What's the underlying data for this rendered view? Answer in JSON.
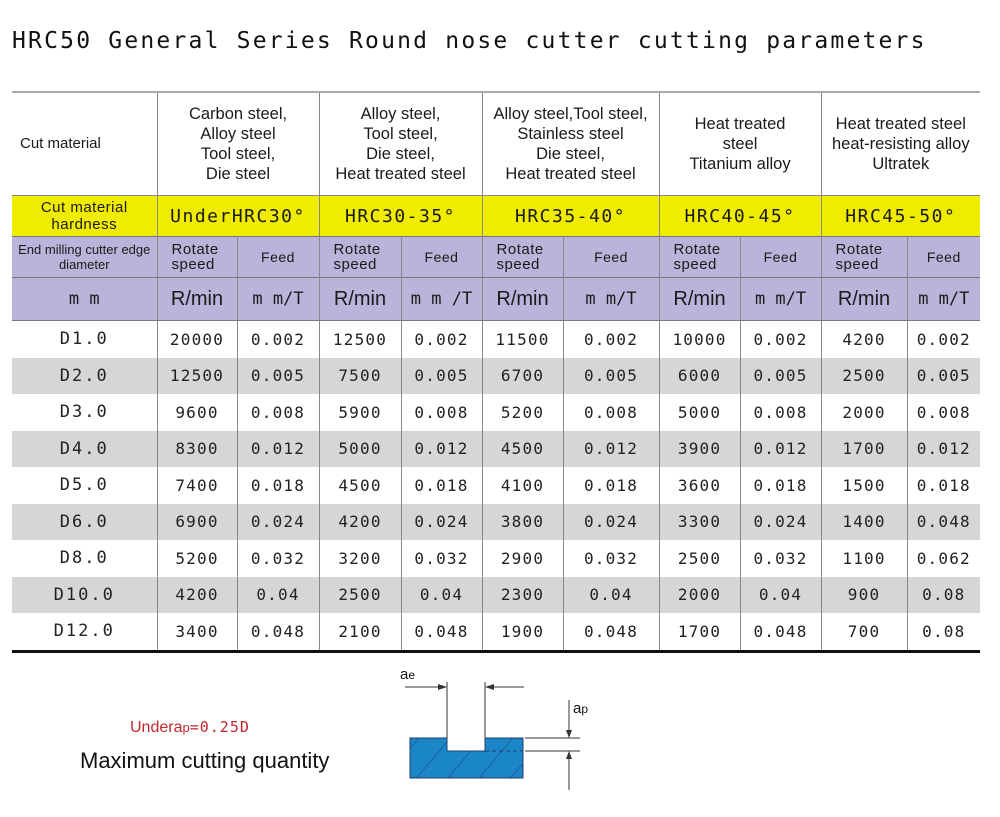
{
  "title": "HRC50 General Series Round nose cutter cutting parameters",
  "table": {
    "cut_material_label": "Cut material",
    "hardness_label": "Cut material hardness",
    "diameter_label": "End milling cutter edge diameter",
    "diameter_unit": "m m",
    "groups": [
      {
        "materials": [
          "Carbon steel,",
          "Alloy steel",
          "Tool steel,",
          "Die steel"
        ],
        "hardness": "UnderHRC30°",
        "speed_label": "Rotate speed",
        "feed_label": "Feed",
        "speed_unit": "R/min",
        "feed_unit": "m m/T"
      },
      {
        "materials": [
          "Alloy steel,",
          "Tool steel,",
          "Die steel,",
          "Heat treated steel"
        ],
        "hardness": "HRC30-35°",
        "speed_label": "Rotate speed",
        "feed_label": "Feed",
        "speed_unit": "R/min",
        "feed_unit": "m m /T"
      },
      {
        "materials": [
          "Alloy steel,Tool steel,",
          "Stainless steel",
          "Die steel,",
          "Heat treated steel"
        ],
        "hardness": "HRC35-40°",
        "speed_label": "Rotate speed",
        "feed_label": "Feed",
        "speed_unit": "R/min",
        "feed_unit": "m m/T"
      },
      {
        "materials": [
          "Heat treated",
          "steel",
          "Titanium alloy"
        ],
        "hardness": "HRC40-45°",
        "speed_label": "Rotate speed",
        "feed_label": "Feed",
        "speed_unit": "R/min",
        "feed_unit": "m m/T"
      },
      {
        "materials": [
          "Heat treated steel",
          "heat-resisting alloy",
          "Ultratek"
        ],
        "hardness": "HRC45-50°",
        "speed_label": "Rotate speed",
        "feed_label": "Feed",
        "speed_unit": "R/min",
        "feed_unit": "m m/T"
      }
    ],
    "rows": [
      {
        "diameter": "D1.0",
        "values": [
          "20000",
          "0.002",
          "12500",
          "0.002",
          "11500",
          "0.002",
          "10000",
          "0.002",
          "4200",
          "0.002"
        ]
      },
      {
        "diameter": "D2.0",
        "values": [
          "12500",
          "0.005",
          "7500",
          "0.005",
          "6700",
          "0.005",
          "6000",
          "0.005",
          "2500",
          "0.005"
        ]
      },
      {
        "diameter": "D3.0",
        "values": [
          "9600",
          "0.008",
          "5900",
          "0.008",
          "5200",
          "0.008",
          "5000",
          "0.008",
          "2000",
          "0.008"
        ]
      },
      {
        "diameter": "D4.0",
        "values": [
          "8300",
          "0.012",
          "5000",
          "0.012",
          "4500",
          "0.012",
          "3900",
          "0.012",
          "1700",
          "0.012"
        ]
      },
      {
        "diameter": "D5.0",
        "values": [
          "7400",
          "0.018",
          "4500",
          "0.018",
          "4100",
          "0.018",
          "3600",
          "0.018",
          "1500",
          "0.018"
        ]
      },
      {
        "diameter": "D6.0",
        "values": [
          "6900",
          "0.024",
          "4200",
          "0.024",
          "3800",
          "0.024",
          "3300",
          "0.024",
          "1400",
          "0.048"
        ]
      },
      {
        "diameter": "D8.0",
        "values": [
          "5200",
          "0.032",
          "3200",
          "0.032",
          "2900",
          "0.032",
          "2500",
          "0.032",
          "1100",
          "0.062"
        ]
      },
      {
        "diameter": "D10.0",
        "values": [
          "4200",
          "0.04",
          "2500",
          "0.04",
          "2300",
          "0.04",
          "2000",
          "0.04",
          "900",
          "0.08"
        ]
      },
      {
        "diameter": "D12.0",
        "values": [
          "3400",
          "0.048",
          "2100",
          "0.048",
          "1900",
          "0.048",
          "1700",
          "0.048",
          "700",
          "0.08"
        ]
      }
    ]
  },
  "note": {
    "under_prefix": "Undera",
    "under_sub": "p",
    "under_eq": "=0.25D",
    "max_label": "Maximum cutting quantity"
  },
  "diagram": {
    "ae_main": "a",
    "ae_sub": "e",
    "ap_main": "a",
    "ap_sub": "p",
    "fill_color": "#1a86c8",
    "stroke_color": "#1f3f6e"
  },
  "colors": {
    "hardness_bg": "#f0ec00",
    "header_bg": "#b9b4da",
    "shaded_row": "#d6d6d6",
    "note_red": "#c0262b"
  }
}
